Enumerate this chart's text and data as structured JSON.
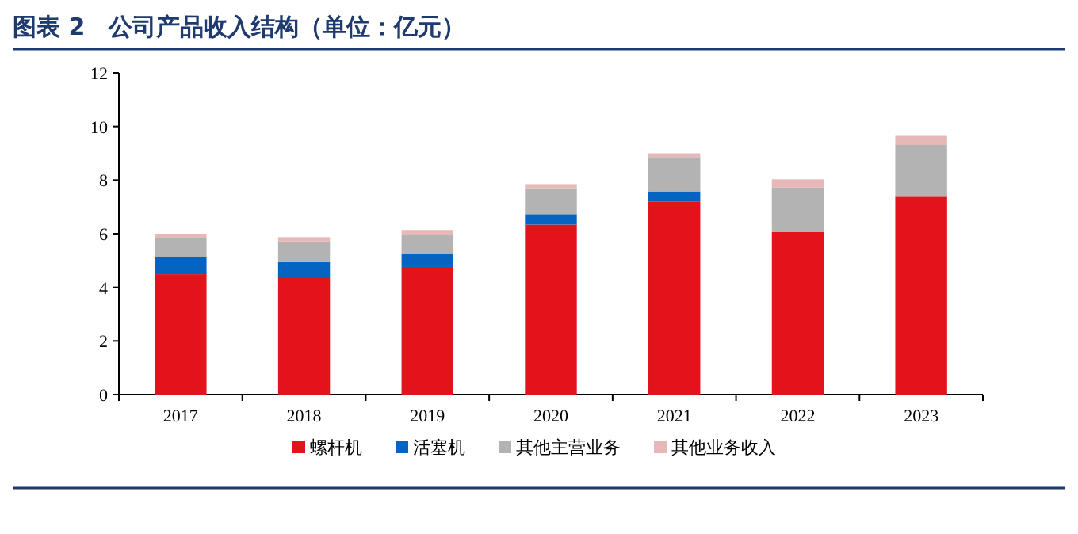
{
  "chart_data": {
    "type": "bar",
    "title": "图表 2　公司产品收入结构（单位：亿元）",
    "stacked": true,
    "categories": [
      "2017",
      "2018",
      "2019",
      "2020",
      "2021",
      "2022",
      "2023"
    ],
    "series": [
      {
        "name": "螺杆机",
        "color": "#e3131b",
        "values": [
          4.49,
          4.39,
          4.76,
          6.34,
          7.19,
          6.06,
          7.38
        ]
      },
      {
        "name": "活塞机",
        "color": "#0563c1",
        "values": [
          0.65,
          0.55,
          0.48,
          0.39,
          0.39,
          0,
          0
        ]
      },
      {
        "name": "其他主营业务",
        "color": "#b3b3b3",
        "values": [
          0.69,
          0.77,
          0.72,
          0.97,
          1.28,
          1.66,
          1.93
        ]
      },
      {
        "name": "其他业务收入",
        "color": "#e6b8b7",
        "values": [
          0.17,
          0.16,
          0.18,
          0.15,
          0.14,
          0.31,
          0.34
        ]
      }
    ],
    "ylim": [
      0,
      12
    ],
    "yticks": [
      0,
      2,
      4,
      6,
      8,
      10,
      12
    ],
    "grid": false,
    "legend": "bottom"
  }
}
